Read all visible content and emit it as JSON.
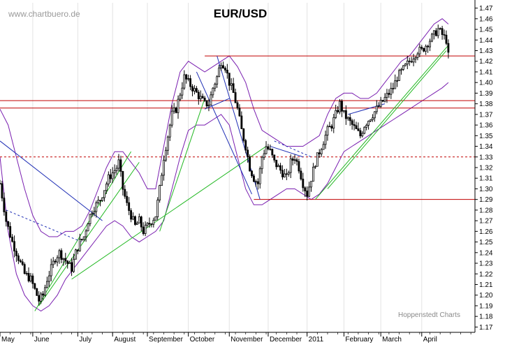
{
  "chart_data": {
    "type": "candlestick",
    "title": "EUR/USD",
    "watermark": "www.chartbuero.de",
    "credit": "Hoppenstedt Charts",
    "ylim": [
      1.165,
      1.475
    ],
    "yticks": [
      1.17,
      1.18,
      1.19,
      1.2,
      1.21,
      1.22,
      1.23,
      1.24,
      1.25,
      1.26,
      1.27,
      1.28,
      1.29,
      1.3,
      1.31,
      1.32,
      1.33,
      1.34,
      1.35,
      1.36,
      1.37,
      1.38,
      1.39,
      1.4,
      1.41,
      1.42,
      1.43,
      1.44,
      1.45,
      1.46,
      1.47
    ],
    "x_range": [
      0,
      232
    ],
    "months": [
      {
        "label": "May",
        "start": 0
      },
      {
        "label": "June",
        "start": 16
      },
      {
        "label": "July",
        "start": 38
      },
      {
        "label": "August",
        "start": 55
      },
      {
        "label": "September",
        "start": 72
      },
      {
        "label": "October",
        "start": 92
      },
      {
        "label": "November",
        "start": 112
      },
      {
        "label": "December",
        "start": 131
      },
      {
        "label": "2011",
        "start": 150
      },
      {
        "label": "February",
        "start": 168
      },
      {
        "label": "March",
        "start": 186
      },
      {
        "label": "April",
        "start": 206
      }
    ],
    "close_path": [
      [
        0,
        1.305
      ],
      [
        3,
        1.27
      ],
      [
        6,
        1.25
      ],
      [
        9,
        1.235
      ],
      [
        12,
        1.22
      ],
      [
        15,
        1.215
      ],
      [
        17,
        1.205
      ],
      [
        19,
        1.195
      ],
      [
        21,
        1.2
      ],
      [
        23,
        1.215
      ],
      [
        25,
        1.225
      ],
      [
        27,
        1.235
      ],
      [
        29,
        1.24
      ],
      [
        31,
        1.235
      ],
      [
        33,
        1.23
      ],
      [
        35,
        1.225
      ],
      [
        37,
        1.24
      ],
      [
        39,
        1.25
      ],
      [
        41,
        1.255
      ],
      [
        43,
        1.27
      ],
      [
        45,
        1.28
      ],
      [
        47,
        1.285
      ],
      [
        49,
        1.29
      ],
      [
        51,
        1.3
      ],
      [
        53,
        1.31
      ],
      [
        55,
        1.315
      ],
      [
        57,
        1.32
      ],
      [
        58,
        1.325
      ],
      [
        60,
        1.3
      ],
      [
        62,
        1.285
      ],
      [
        64,
        1.275
      ],
      [
        66,
        1.265
      ],
      [
        68,
        1.27
      ],
      [
        70,
        1.26
      ],
      [
        72,
        1.265
      ],
      [
        74,
        1.27
      ],
      [
        76,
        1.275
      ],
      [
        78,
        1.3
      ],
      [
        80,
        1.33
      ],
      [
        82,
        1.35
      ],
      [
        84,
        1.37
      ],
      [
        86,
        1.375
      ],
      [
        88,
        1.39
      ],
      [
        90,
        1.405
      ],
      [
        92,
        1.4
      ],
      [
        94,
        1.395
      ],
      [
        96,
        1.39
      ],
      [
        98,
        1.385
      ],
      [
        100,
        1.38
      ],
      [
        102,
        1.38
      ],
      [
        104,
        1.395
      ],
      [
        106,
        1.405
      ],
      [
        108,
        1.42
      ],
      [
        110,
        1.415
      ],
      [
        112,
        1.4
      ],
      [
        114,
        1.39
      ],
      [
        116,
        1.375
      ],
      [
        118,
        1.355
      ],
      [
        120,
        1.34
      ],
      [
        122,
        1.32
      ],
      [
        124,
        1.31
      ],
      [
        126,
        1.305
      ],
      [
        128,
        1.33
      ],
      [
        130,
        1.34
      ],
      [
        132,
        1.335
      ],
      [
        134,
        1.325
      ],
      [
        136,
        1.32
      ],
      [
        138,
        1.315
      ],
      [
        140,
        1.31
      ],
      [
        142,
        1.325
      ],
      [
        144,
        1.33
      ],
      [
        146,
        1.32
      ],
      [
        148,
        1.305
      ],
      [
        150,
        1.295
      ],
      [
        152,
        1.31
      ],
      [
        154,
        1.325
      ],
      [
        156,
        1.335
      ],
      [
        158,
        1.345
      ],
      [
        160,
        1.355
      ],
      [
        162,
        1.36
      ],
      [
        164,
        1.37
      ],
      [
        166,
        1.38
      ],
      [
        168,
        1.37
      ],
      [
        170,
        1.365
      ],
      [
        172,
        1.36
      ],
      [
        174,
        1.355
      ],
      [
        176,
        1.35
      ],
      [
        178,
        1.36
      ],
      [
        180,
        1.365
      ],
      [
        182,
        1.37
      ],
      [
        184,
        1.375
      ],
      [
        186,
        1.38
      ],
      [
        188,
        1.385
      ],
      [
        190,
        1.39
      ],
      [
        192,
        1.395
      ],
      [
        194,
        1.405
      ],
      [
        196,
        1.41
      ],
      [
        198,
        1.415
      ],
      [
        200,
        1.42
      ],
      [
        202,
        1.425
      ],
      [
        204,
        1.43
      ],
      [
        206,
        1.43
      ],
      [
        208,
        1.435
      ],
      [
        210,
        1.44
      ],
      [
        212,
        1.445
      ],
      [
        214,
        1.45
      ],
      [
        216,
        1.445
      ],
      [
        218,
        1.44
      ],
      [
        219,
        1.425
      ]
    ],
    "upper_band": [
      [
        0,
        1.375
      ],
      [
        4,
        1.36
      ],
      [
        8,
        1.33
      ],
      [
        12,
        1.3
      ],
      [
        16,
        1.275
      ],
      [
        20,
        1.26
      ],
      [
        24,
        1.255
      ],
      [
        28,
        1.255
      ],
      [
        32,
        1.26
      ],
      [
        36,
        1.26
      ],
      [
        40,
        1.265
      ],
      [
        44,
        1.28
      ],
      [
        48,
        1.3
      ],
      [
        52,
        1.32
      ],
      [
        56,
        1.335
      ],
      [
        60,
        1.335
      ],
      [
        64,
        1.325
      ],
      [
        68,
        1.315
      ],
      [
        72,
        1.3
      ],
      [
        76,
        1.3
      ],
      [
        80,
        1.34
      ],
      [
        84,
        1.38
      ],
      [
        88,
        1.41
      ],
      [
        92,
        1.42
      ],
      [
        96,
        1.415
      ],
      [
        100,
        1.41
      ],
      [
        104,
        1.415
      ],
      [
        108,
        1.42
      ],
      [
        112,
        1.425
      ],
      [
        116,
        1.415
      ],
      [
        120,
        1.4
      ],
      [
        124,
        1.375
      ],
      [
        128,
        1.355
      ],
      [
        132,
        1.35
      ],
      [
        136,
        1.345
      ],
      [
        140,
        1.34
      ],
      [
        144,
        1.34
      ],
      [
        148,
        1.34
      ],
      [
        152,
        1.345
      ],
      [
        156,
        1.35
      ],
      [
        160,
        1.37
      ],
      [
        164,
        1.385
      ],
      [
        168,
        1.39
      ],
      [
        172,
        1.39
      ],
      [
        176,
        1.385
      ],
      [
        180,
        1.385
      ],
      [
        184,
        1.39
      ],
      [
        188,
        1.4
      ],
      [
        192,
        1.41
      ],
      [
        196,
        1.42
      ],
      [
        200,
        1.425
      ],
      [
        204,
        1.435
      ],
      [
        208,
        1.445
      ],
      [
        212,
        1.455
      ],
      [
        216,
        1.46
      ],
      [
        219,
        1.455
      ]
    ],
    "lower_band": [
      [
        0,
        1.33
      ],
      [
        4,
        1.26
      ],
      [
        8,
        1.22
      ],
      [
        12,
        1.2
      ],
      [
        16,
        1.19
      ],
      [
        20,
        1.185
      ],
      [
        24,
        1.19
      ],
      [
        28,
        1.2
      ],
      [
        32,
        1.215
      ],
      [
        36,
        1.225
      ],
      [
        40,
        1.235
      ],
      [
        44,
        1.245
      ],
      [
        48,
        1.255
      ],
      [
        52,
        1.265
      ],
      [
        56,
        1.27
      ],
      [
        60,
        1.265
      ],
      [
        64,
        1.255
      ],
      [
        68,
        1.25
      ],
      [
        72,
        1.255
      ],
      [
        76,
        1.26
      ],
      [
        80,
        1.27
      ],
      [
        84,
        1.3
      ],
      [
        88,
        1.33
      ],
      [
        92,
        1.355
      ],
      [
        96,
        1.36
      ],
      [
        100,
        1.36
      ],
      [
        104,
        1.365
      ],
      [
        108,
        1.37
      ],
      [
        112,
        1.36
      ],
      [
        116,
        1.33
      ],
      [
        120,
        1.3
      ],
      [
        124,
        1.285
      ],
      [
        128,
        1.285
      ],
      [
        132,
        1.29
      ],
      [
        136,
        1.295
      ],
      [
        140,
        1.3
      ],
      [
        144,
        1.3
      ],
      [
        148,
        1.295
      ],
      [
        152,
        1.29
      ],
      [
        156,
        1.295
      ],
      [
        160,
        1.305
      ],
      [
        164,
        1.32
      ],
      [
        168,
        1.335
      ],
      [
        172,
        1.34
      ],
      [
        176,
        1.345
      ],
      [
        180,
        1.35
      ],
      [
        184,
        1.355
      ],
      [
        188,
        1.36
      ],
      [
        192,
        1.365
      ],
      [
        196,
        1.37
      ],
      [
        200,
        1.375
      ],
      [
        204,
        1.38
      ],
      [
        208,
        1.385
      ],
      [
        212,
        1.39
      ],
      [
        216,
        1.395
      ],
      [
        219,
        1.4
      ]
    ],
    "horizontal_lines": [
      {
        "value": 1.425,
        "from": 100,
        "to": 232,
        "style": "solid"
      },
      {
        "value": 1.383,
        "from": 0,
        "to": 232,
        "style": "solid"
      },
      {
        "value": 1.376,
        "from": 0,
        "to": 232,
        "style": "solid"
      },
      {
        "value": 1.33,
        "from": 0,
        "to": 232,
        "style": "dashed"
      },
      {
        "value": 1.29,
        "from": 124,
        "to": 232,
        "style": "solid"
      }
    ],
    "trendlines": [
      {
        "color": "green",
        "points": [
          [
            17,
            1.185
          ],
          [
            64,
            1.335
          ]
        ]
      },
      {
        "color": "green",
        "points": [
          [
            19,
            1.19
          ],
          [
            68,
            1.325
          ]
        ]
      },
      {
        "color": "green",
        "points": [
          [
            35,
            1.215
          ],
          [
            130,
            1.34
          ]
        ]
      },
      {
        "color": "green",
        "points": [
          [
            78,
            1.26
          ],
          [
            100,
            1.385
          ]
        ]
      },
      {
        "color": "green",
        "points": [
          [
            154,
            1.29
          ],
          [
            219,
            1.435
          ]
        ]
      },
      {
        "color": "green",
        "points": [
          [
            160,
            1.3
          ],
          [
            218,
            1.43
          ]
        ]
      },
      {
        "color": "blue",
        "points": [
          [
            0,
            1.345
          ],
          [
            50,
            1.27
          ]
        ]
      },
      {
        "color": "blue",
        "points": [
          [
            106,
            1.425
          ],
          [
            127,
            1.29
          ]
        ]
      },
      {
        "color": "blue",
        "points": [
          [
            96,
            1.41
          ],
          [
            123,
            1.295
          ]
        ]
      },
      {
        "color": "blue",
        "points": [
          [
            100,
            1.375
          ],
          [
            112,
            1.385
          ]
        ]
      },
      {
        "color": "blue",
        "points": [
          [
            170,
            1.37
          ],
          [
            188,
            1.38
          ]
        ]
      },
      {
        "color": "blue",
        "points": [
          [
            132,
            1.34
          ],
          [
            148,
            1.33
          ]
        ]
      }
    ],
    "dashed_lines": [
      {
        "points": [
          [
            3,
            1.28
          ],
          [
            40,
            1.25
          ]
        ]
      },
      {
        "points": [
          [
            134,
            1.345
          ],
          [
            152,
            1.33
          ]
        ]
      }
    ]
  }
}
